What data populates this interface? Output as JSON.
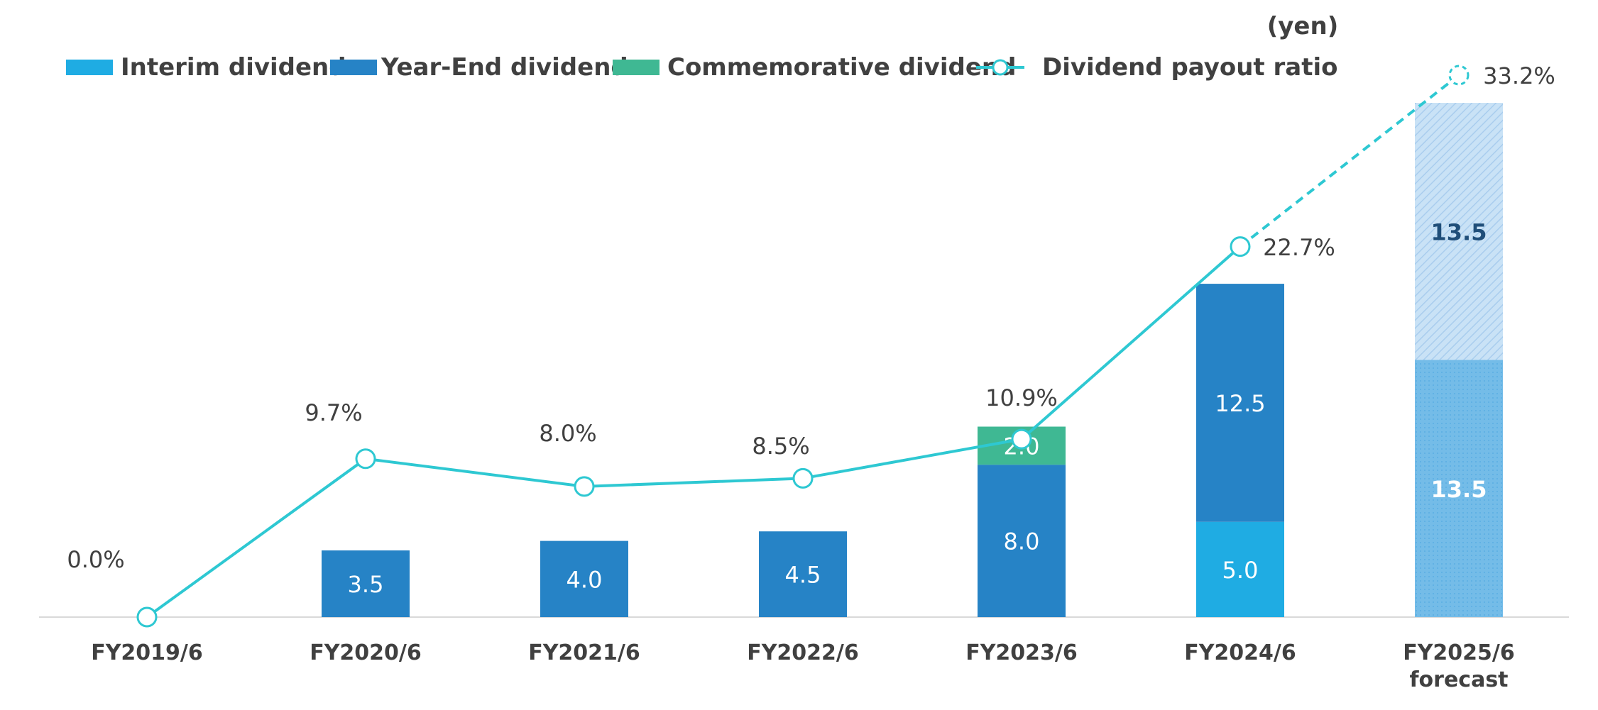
{
  "chart_data": {
    "type": "bar",
    "unit": "(yen)",
    "categories": [
      "FY2019/6",
      "FY2020/6",
      "FY2021/6",
      "FY2022/6",
      "FY2023/6",
      "FY2024/6",
      "FY2025/6\nforecast"
    ],
    "series": [
      {
        "name": "Interim dividend",
        "type": "bar",
        "color": "#1FACE3",
        "values": [
          0,
          0,
          0,
          0,
          0,
          5.0,
          13.5
        ]
      },
      {
        "name": "Year-End dividend",
        "type": "bar",
        "color": "#2683C6",
        "values": [
          0,
          3.5,
          4.0,
          4.5,
          8.0,
          12.5,
          13.5
        ]
      },
      {
        "name": "Commemorative dividend",
        "type": "bar",
        "color": "#3FB893",
        "values": [
          0,
          0,
          0,
          0,
          2.0,
          0,
          0
        ]
      },
      {
        "name": "Dividend payout ratio",
        "type": "line",
        "color": "#2EC8D2",
        "values": [
          0.0,
          9.7,
          8.0,
          8.5,
          10.9,
          22.7,
          33.2
        ],
        "value_labels": [
          "0.0%",
          "9.7%",
          "8.0%",
          "8.5%",
          "10.9%",
          "22.7%",
          "33.2%"
        ]
      }
    ],
    "bar_labels": {
      "Interim dividend": [
        "",
        "",
        "",
        "",
        "",
        "5.0",
        "13.5"
      ],
      "Year-End dividend": [
        "",
        "3.5",
        "4.0",
        "4.5",
        "8.0",
        "12.5",
        "13.5"
      ],
      "Commemorative dividend": [
        "",
        "",
        "",
        "",
        "2.0",
        "",
        ""
      ]
    },
    "forecast_index": 6,
    "forecast_colors": {
      "Interim dividend": "#6FB7E6",
      "Year-End dividend": "#B6D7F2"
    },
    "forecast_label_colors": {
      "Interim dividend": "#ffffff",
      "Year-End dividend": "#1F4E79"
    },
    "y_bar_range": [
      0,
      27
    ],
    "y_ratio_range": [
      0,
      33.2
    ],
    "legend_position": "top",
    "grid": false
  }
}
